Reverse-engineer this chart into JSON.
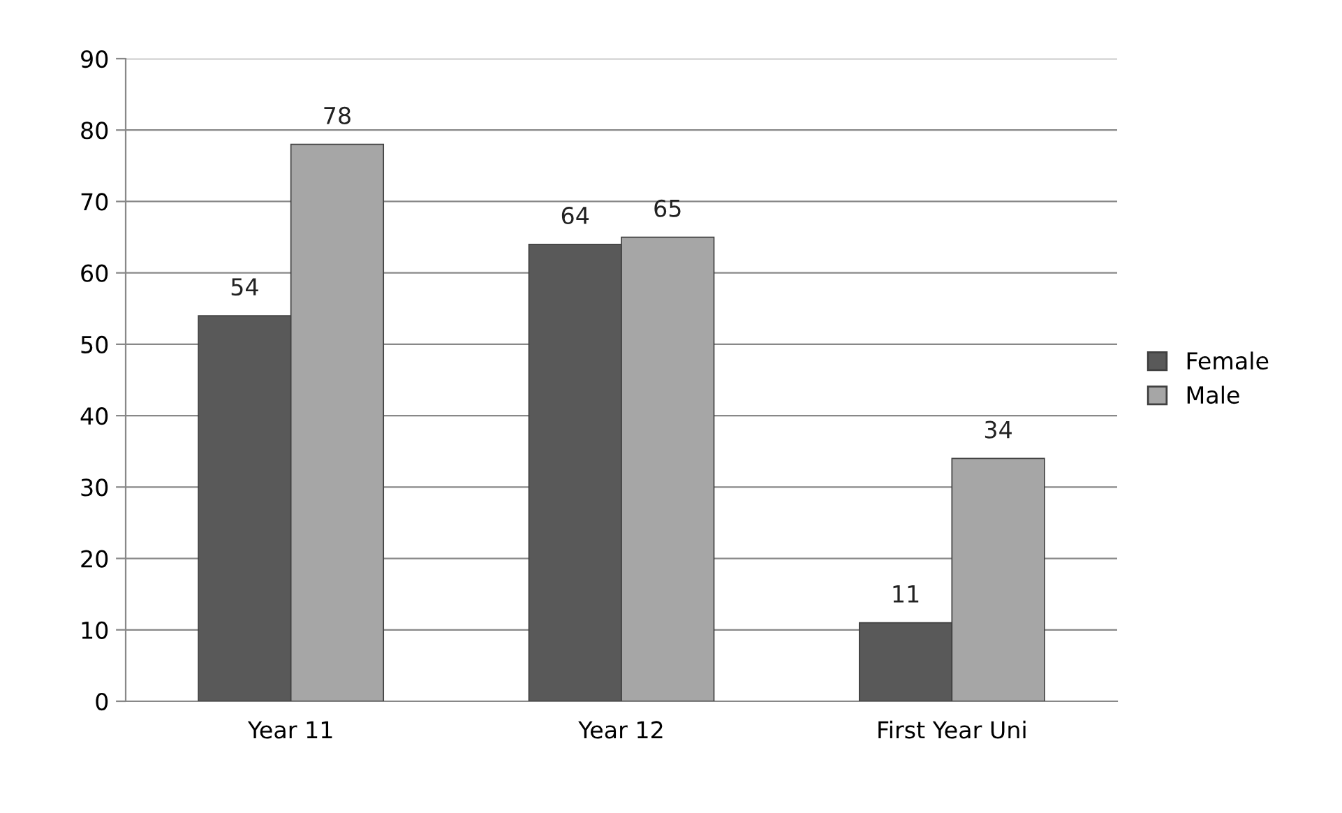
{
  "chart_data": {
    "type": "bar",
    "categories": [
      "Year 11",
      "Year 12",
      "First Year Uni"
    ],
    "series": [
      {
        "name": "Female",
        "color": "#595959",
        "values": [
          54,
          64,
          11
        ]
      },
      {
        "name": "Male",
        "color": "#a6a6a6",
        "values": [
          78,
          65,
          34
        ]
      }
    ],
    "ylim": [
      0,
      90
    ],
    "yticks": [
      0,
      10,
      20,
      30,
      40,
      50,
      60,
      70,
      80,
      90
    ],
    "grid": "y",
    "legend": "right",
    "data_labels": true
  }
}
